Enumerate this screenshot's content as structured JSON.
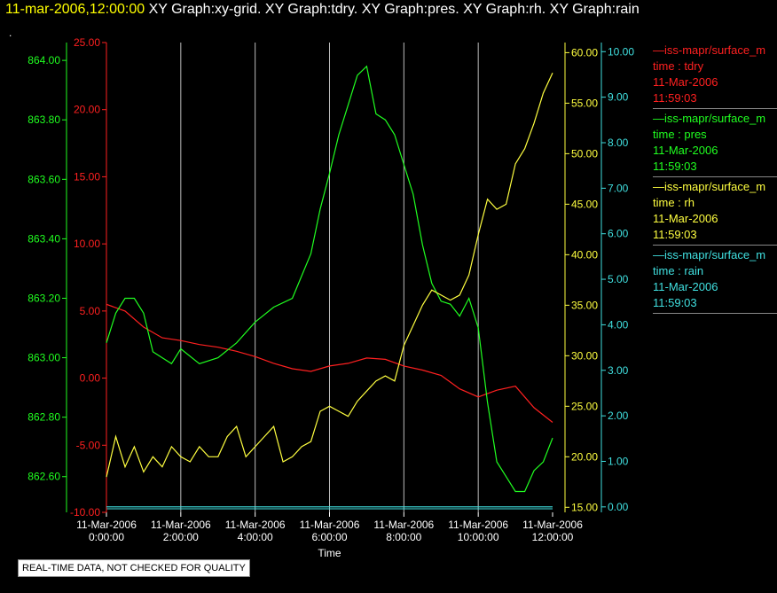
{
  "header": {
    "timestamp": "11-mar-2006,12:00:00",
    "graph_titles": "XY Graph:xy-grid.  XY Graph:tdry.  XY Graph:pres.  XY Graph:rh.  XY Graph:rain",
    "dot": "."
  },
  "legend": [
    {
      "line1": "—iss-mapr/surface_m",
      "line2": "time : tdry",
      "line3": "11-Mar-2006",
      "line4": "11:59:03",
      "color": "#ff2020"
    },
    {
      "line1": "—iss-mapr/surface_m",
      "line2": "time : pres",
      "line3": "11-Mar-2006",
      "line4": "11:59:03",
      "color": "#20ff20"
    },
    {
      "line1": "—iss-mapr/surface_m",
      "line2": "time : rh",
      "line3": "11-Mar-2006",
      "line4": "11:59:03",
      "color": "#ffff40"
    },
    {
      "line1": "—iss-mapr/surface_m",
      "line2": "time : rain",
      "line3": "11-Mar-2006",
      "line4": "11:59:03",
      "color": "#40e0e0"
    }
  ],
  "footer": {
    "badge": "REAL-TIME DATA, NOT CHECKED FOR QUALITY"
  },
  "chart_data": {
    "type": "line",
    "xlabel": "Time",
    "x_ticks": [
      {
        "date": "11-Mar-2006",
        "time": "0:00:00"
      },
      {
        "date": "11-Mar-2006",
        "time": "2:00:00"
      },
      {
        "date": "11-Mar-2006",
        "time": "4:00:00"
      },
      {
        "date": "11-Mar-2006",
        "time": "6:00:00"
      },
      {
        "date": "11-Mar-2006",
        "time": "8:00:00"
      },
      {
        "date": "11-Mar-2006",
        "time": "10:00:00"
      },
      {
        "date": "11-Mar-2006",
        "time": "12:00:00"
      }
    ],
    "xlim_hours": [
      0,
      12
    ],
    "grid_vertical": true,
    "axes": {
      "tdry": {
        "color": "#ff2020",
        "ylim": [
          -10,
          25
        ],
        "ticks": [
          "-10.00",
          "-5.00",
          "0.00",
          "5.00",
          "10.00",
          "15.00",
          "20.00",
          "25.00"
        ]
      },
      "pres": {
        "color": "#20ff20",
        "ylim": [
          862.48,
          864.06
        ],
        "ticks": [
          "862.60",
          "862.80",
          "863.00",
          "863.20",
          "863.40",
          "863.60",
          "863.80",
          "864.00"
        ]
      },
      "rh": {
        "color": "#ffff40",
        "ylim": [
          14.5,
          61
        ],
        "ticks": [
          "15.00",
          "20.00",
          "25.00",
          "30.00",
          "35.00",
          "40.00",
          "45.00",
          "50.00",
          "55.00",
          "60.00"
        ]
      },
      "rain": {
        "color": "#40e0e0",
        "ylim": [
          -0.12,
          10.2
        ],
        "ticks": [
          "0.00",
          "1.00",
          "2.00",
          "3.00",
          "4.00",
          "5.00",
          "6.00",
          "7.00",
          "8.00",
          "9.00",
          "10.00"
        ]
      }
    },
    "series": [
      {
        "key": "tdry",
        "hours": [
          0,
          0.5,
          1,
          1.5,
          2,
          2.5,
          3,
          3.5,
          4,
          4.5,
          5,
          5.5,
          6,
          6.5,
          7,
          7.5,
          8,
          8.5,
          9,
          9.5,
          10,
          10.5,
          11,
          11.5,
          12
        ],
        "values": [
          5.5,
          5.0,
          3.8,
          3.0,
          2.8,
          2.5,
          2.3,
          2.0,
          1.6,
          1.1,
          0.7,
          0.5,
          0.9,
          1.1,
          1.5,
          1.4,
          0.9,
          0.6,
          0.2,
          -0.8,
          -1.4,
          -0.9,
          -0.6,
          -2.2,
          -3.3
        ]
      },
      {
        "key": "pres",
        "hours": [
          0,
          0.25,
          0.5,
          0.75,
          1,
          1.25,
          1.5,
          1.75,
          2,
          2.5,
          3,
          3.5,
          4,
          4.5,
          5,
          5.5,
          5.75,
          6,
          6.25,
          6.5,
          6.75,
          7,
          7.25,
          7.5,
          7.75,
          8,
          8.25,
          8.5,
          8.75,
          9,
          9.25,
          9.5,
          9.75,
          10,
          10.25,
          10.5,
          10.75,
          11,
          11.25,
          11.5,
          11.75,
          12
        ],
        "values": [
          863.05,
          863.15,
          863.2,
          863.2,
          863.15,
          863.02,
          863.0,
          862.98,
          863.03,
          862.98,
          863.0,
          863.05,
          863.12,
          863.17,
          863.2,
          863.35,
          863.5,
          863.62,
          863.75,
          863.85,
          863.95,
          863.98,
          863.82,
          863.8,
          863.75,
          863.65,
          863.55,
          863.38,
          863.25,
          863.19,
          863.18,
          863.14,
          863.2,
          863.1,
          862.85,
          862.65,
          862.6,
          862.55,
          862.55,
          862.62,
          862.65,
          862.73
        ]
      },
      {
        "key": "rh",
        "hours": [
          0,
          0.25,
          0.5,
          0.75,
          1,
          1.25,
          1.5,
          1.75,
          2,
          2.25,
          2.5,
          2.75,
          3,
          3.25,
          3.5,
          3.75,
          4,
          4.25,
          4.5,
          4.75,
          5,
          5.25,
          5.5,
          5.75,
          6,
          6.25,
          6.5,
          6.75,
          7,
          7.25,
          7.5,
          7.75,
          8,
          8.25,
          8.5,
          8.75,
          9,
          9.25,
          9.5,
          9.75,
          10,
          10.25,
          10.5,
          10.75,
          11,
          11.25,
          11.5,
          11.75,
          12
        ],
        "values": [
          18,
          22,
          19,
          21,
          18.5,
          20,
          19,
          21,
          20,
          19.5,
          21,
          20,
          20,
          22,
          23,
          20,
          21,
          22,
          23,
          19.5,
          20,
          21,
          21.5,
          24.5,
          25,
          24.5,
          24,
          25.5,
          26.5,
          27.5,
          28,
          27.5,
          31,
          33,
          35,
          36.5,
          36,
          35.5,
          36,
          38,
          42,
          45.5,
          44.5,
          45,
          49,
          50.5,
          53,
          56,
          58
        ]
      },
      {
        "key": "rain",
        "hours": [
          0,
          12
        ],
        "values": [
          0,
          0
        ]
      }
    ]
  }
}
